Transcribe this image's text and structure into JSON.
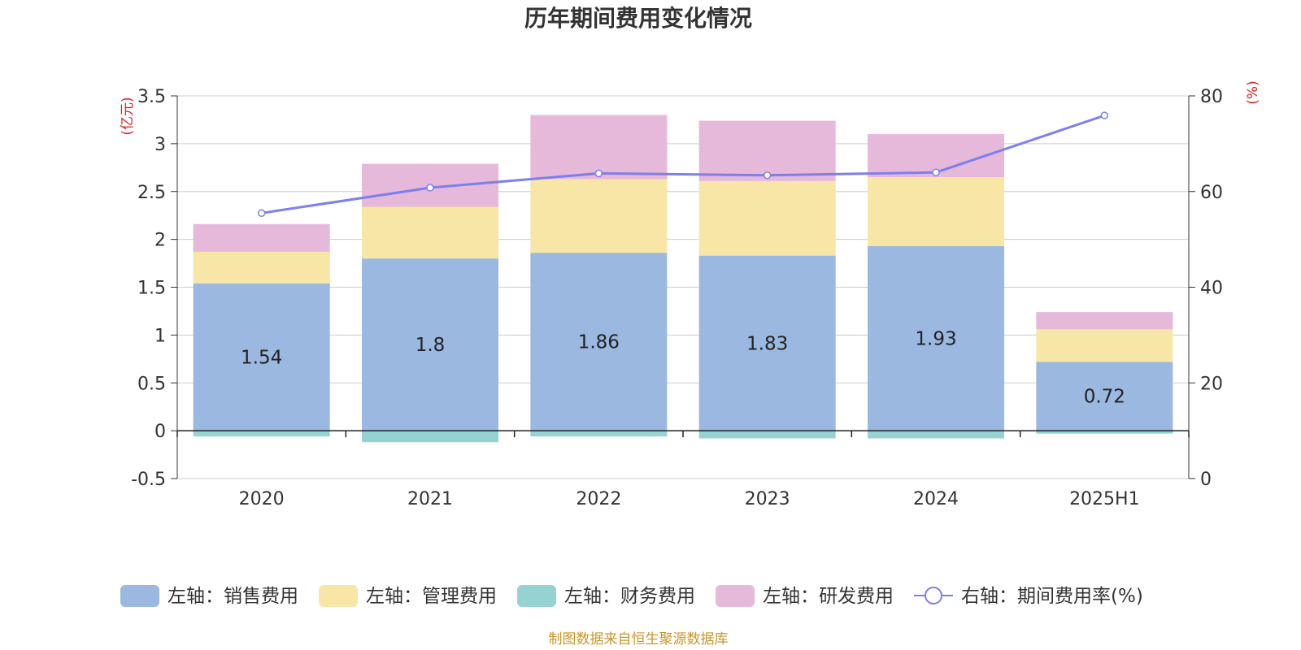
{
  "chart_data": {
    "type": "bar",
    "title": "历年期间费用变化情况",
    "categories": [
      "2020",
      "2021",
      "2022",
      "2023",
      "2024",
      "2025H1"
    ],
    "left_axis": {
      "unit": "(亿元)",
      "ylim": [
        -0.5,
        3.5
      ],
      "ticks": [
        "3.5",
        "3",
        "2.5",
        "2",
        "1.5",
        "1",
        "0.5",
        "0",
        "-0.5"
      ]
    },
    "right_axis": {
      "unit": "(%)",
      "ylim": [
        0,
        80
      ],
      "ticks": [
        "80",
        "60",
        "40",
        "20",
        "0"
      ]
    },
    "series": [
      {
        "name": "左轴：销售费用",
        "type": "bar",
        "axis": "left",
        "color": "#9bb8e0",
        "values": [
          1.54,
          1.8,
          1.86,
          1.83,
          1.93,
          0.72
        ],
        "labels": [
          "1.54",
          "1.8",
          "1.86",
          "1.83",
          "1.93",
          "0.72"
        ]
      },
      {
        "name": "左轴：管理费用",
        "type": "bar",
        "axis": "left",
        "color": "#f7e6a6",
        "values": [
          0.33,
          0.54,
          0.77,
          0.78,
          0.72,
          0.34
        ]
      },
      {
        "name": "左轴：财务费用",
        "type": "bar",
        "axis": "left",
        "color": "#95d3d3",
        "values": [
          -0.06,
          -0.12,
          -0.06,
          -0.08,
          -0.08,
          -0.03
        ]
      },
      {
        "name": "左轴：研发费用",
        "type": "bar",
        "axis": "left",
        "color": "#e6b8d9",
        "values": [
          0.29,
          0.45,
          0.67,
          0.63,
          0.45,
          0.18
        ]
      },
      {
        "name": "右轴：期间费用率(%)",
        "type": "line",
        "axis": "right",
        "color": "#7b80ee",
        "values": [
          55.5,
          60.8,
          63.8,
          63.4,
          64.0,
          75.9
        ]
      }
    ],
    "grid": true,
    "legend_position": "bottom"
  },
  "source": "制图数据来自恒生聚源数据库"
}
